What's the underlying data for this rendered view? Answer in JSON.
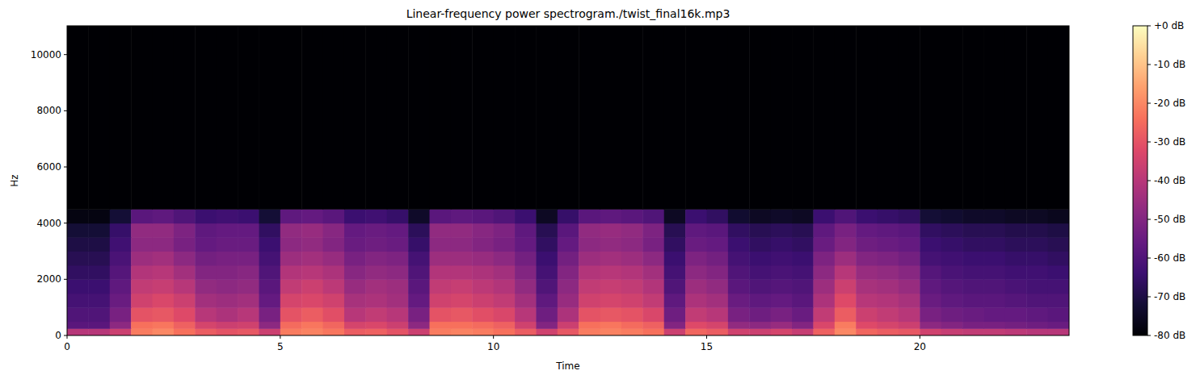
{
  "chart_data": {
    "type": "heatmap",
    "title": "Linear-frequency power spectrogram./twist_final16k.mp3",
    "x_label": "Time",
    "y_label": "Hz",
    "xlim": [
      0,
      23.5
    ],
    "ylim": [
      0,
      11025
    ],
    "xticks": [
      0,
      5,
      10,
      15,
      20
    ],
    "yticks": [
      0,
      2000,
      4000,
      6000,
      8000,
      10000
    ],
    "x_edges": [
      0,
      0.5,
      1,
      1.5,
      2,
      2.5,
      3,
      3.5,
      4,
      4.5,
      5,
      5.5,
      6,
      6.5,
      7,
      7.5,
      8,
      8.5,
      9,
      9.5,
      10,
      10.5,
      11,
      11.5,
      12,
      12.5,
      13,
      13.5,
      14,
      14.5,
      15,
      15.5,
      16,
      16.5,
      17,
      17.5,
      18,
      18.5,
      19,
      19.5,
      20,
      20.5,
      21,
      21.5,
      22,
      22.5,
      23,
      23.5
    ],
    "y_edges": [
      0,
      250,
      500,
      1000,
      1500,
      2000,
      2500,
      3000,
      3500,
      4000,
      4500,
      11025
    ],
    "values": [
      [
        -40,
        -40,
        -36,
        -22,
        -20,
        -24,
        -28,
        -30,
        -29,
        -36,
        -22,
        -21,
        -23,
        -28,
        -27,
        -30,
        -36,
        -22,
        -21,
        -22,
        -24,
        -28,
        -35,
        -29,
        -22,
        -21,
        -22,
        -24,
        -36,
        -26,
        -28,
        -35,
        -36,
        -34,
        -37,
        -27,
        -20,
        -26,
        -28,
        -29,
        -35,
        -37,
        -38,
        -38,
        -39,
        -40,
        -40
      ],
      [
        -58,
        -58,
        -48,
        -24,
        -23,
        -27,
        -34,
        -36,
        -35,
        -48,
        -25,
        -23,
        -26,
        -34,
        -33,
        -36,
        -48,
        -24,
        -24,
        -25,
        -27,
        -35,
        -50,
        -36,
        -24,
        -23,
        -25,
        -27,
        -50,
        -32,
        -34,
        -47,
        -48,
        -46,
        -50,
        -33,
        -22,
        -32,
        -34,
        -36,
        -48,
        -50,
        -52,
        -52,
        -53,
        -54,
        -55
      ],
      [
        -60,
        -60,
        -52,
        -30,
        -29,
        -32,
        -40,
        -42,
        -40,
        -52,
        -30,
        -28,
        -31,
        -40,
        -38,
        -40,
        -52,
        -30,
        -29,
        -31,
        -33,
        -40,
        -54,
        -42,
        -30,
        -29,
        -30,
        -33,
        -54,
        -38,
        -40,
        -52,
        -54,
        -52,
        -55,
        -38,
        -28,
        -36,
        -38,
        -40,
        -52,
        -54,
        -55,
        -56,
        -56,
        -57,
        -58
      ],
      [
        -62,
        -62,
        -55,
        -35,
        -33,
        -36,
        -44,
        -45,
        -44,
        -56,
        -34,
        -33,
        -35,
        -43,
        -42,
        -44,
        -56,
        -35,
        -34,
        -36,
        -38,
        -44,
        -57,
        -46,
        -35,
        -34,
        -35,
        -38,
        -57,
        -42,
        -44,
        -55,
        -57,
        -56,
        -58,
        -42,
        -32,
        -40,
        -41,
        -43,
        -55,
        -57,
        -58,
        -58,
        -59,
        -60,
        -60
      ],
      [
        -64,
        -64,
        -57,
        -38,
        -37,
        -40,
        -47,
        -48,
        -47,
        -58,
        -38,
        -36,
        -39,
        -46,
        -44,
        -45,
        -58,
        -38,
        -37,
        -39,
        -41,
        -47,
        -60,
        -48,
        -38,
        -37,
        -38,
        -41,
        -60,
        -45,
        -47,
        -58,
        -60,
        -59,
        -60,
        -45,
        -36,
        -43,
        -44,
        -46,
        -57,
        -59,
        -60,
        -60,
        -61,
        -62,
        -62
      ],
      [
        -66,
        -66,
        -59,
        -41,
        -40,
        -44,
        -50,
        -50,
        -49,
        -60,
        -41,
        -40,
        -42,
        -49,
        -47,
        -48,
        -60,
        -41,
        -41,
        -42,
        -44,
        -50,
        -62,
        -50,
        -41,
        -40,
        -41,
        -44,
        -62,
        -48,
        -50,
        -60,
        -62,
        -61,
        -62,
        -48,
        -40,
        -46,
        -47,
        -49,
        -59,
        -61,
        -62,
        -62,
        -63,
        -63,
        -64
      ],
      [
        -68,
        -68,
        -61,
        -45,
        -44,
        -48,
        -53,
        -52,
        -52,
        -62,
        -45,
        -44,
        -46,
        -52,
        -50,
        -51,
        -62,
        -45,
        -45,
        -46,
        -48,
        -53,
        -64,
        -53,
        -45,
        -44,
        -45,
        -48,
        -64,
        -51,
        -53,
        -62,
        -64,
        -63,
        -64,
        -51,
        -45,
        -50,
        -51,
        -53,
        -62,
        -63,
        -64,
        -64,
        -65,
        -65,
        -66
      ],
      [
        -70,
        -70,
        -63,
        -48,
        -48,
        -52,
        -56,
        -55,
        -55,
        -64,
        -48,
        -47,
        -50,
        -55,
        -54,
        -55,
        -65,
        -48,
        -48,
        -50,
        -52,
        -56,
        -66,
        -56,
        -48,
        -47,
        -48,
        -52,
        -66,
        -55,
        -56,
        -64,
        -66,
        -65,
        -66,
        -55,
        -50,
        -54,
        -55,
        -56,
        -64,
        -65,
        -66,
        -66,
        -67,
        -67,
        -68
      ],
      [
        -72,
        -72,
        -65,
        -47,
        -47,
        -51,
        -57,
        -56,
        -56,
        -66,
        -47,
        -46,
        -49,
        -56,
        -55,
        -56,
        -67,
        -47,
        -47,
        -49,
        -51,
        -57,
        -68,
        -58,
        -47,
        -46,
        -47,
        -51,
        -68,
        -57,
        -58,
        -66,
        -68,
        -67,
        -68,
        -57,
        -52,
        -56,
        -57,
        -58,
        -66,
        -67,
        -68,
        -68,
        -69,
        -69,
        -70
      ],
      [
        -78,
        -78,
        -72,
        -58,
        -57,
        -60,
        -64,
        -63,
        -64,
        -72,
        -57,
        -56,
        -58,
        -64,
        -63,
        -65,
        -74,
        -58,
        -57,
        -58,
        -60,
        -64,
        -75,
        -65,
        -58,
        -57,
        -58,
        -60,
        -75,
        -64,
        -66,
        -73,
        -75,
        -74,
        -75,
        -64,
        -60,
        -64,
        -65,
        -66,
        -72,
        -73,
        -74,
        -74,
        -75,
        -75,
        -76
      ],
      [
        -80,
        -80,
        -80,
        -80,
        -80,
        -80,
        -80,
        -80,
        -80,
        -80,
        -80,
        -80,
        -80,
        -80,
        -80,
        -80,
        -80,
        -80,
        -80,
        -80,
        -80,
        -80,
        -80,
        -80,
        -80,
        -80,
        -80,
        -80,
        -80,
        -80,
        -80,
        -80,
        -80,
        -80,
        -80,
        -80,
        -80,
        -80,
        -80,
        -80,
        -80,
        -80,
        -80,
        -80,
        -80,
        -80,
        -80
      ]
    ],
    "colorbar_range": [
      -80,
      0
    ],
    "colorbar_ticks": [
      {
        "value": 0,
        "label": "+0 dB"
      },
      {
        "value": -10,
        "label": "-10 dB"
      },
      {
        "value": -20,
        "label": "-20 dB"
      },
      {
        "value": -30,
        "label": "-30 dB"
      },
      {
        "value": -40,
        "label": "-40 dB"
      },
      {
        "value": -50,
        "label": "-50 dB"
      },
      {
        "value": -60,
        "label": "-60 dB"
      },
      {
        "value": -70,
        "label": "-70 dB"
      },
      {
        "value": -80,
        "label": "-80 dB"
      }
    ]
  }
}
